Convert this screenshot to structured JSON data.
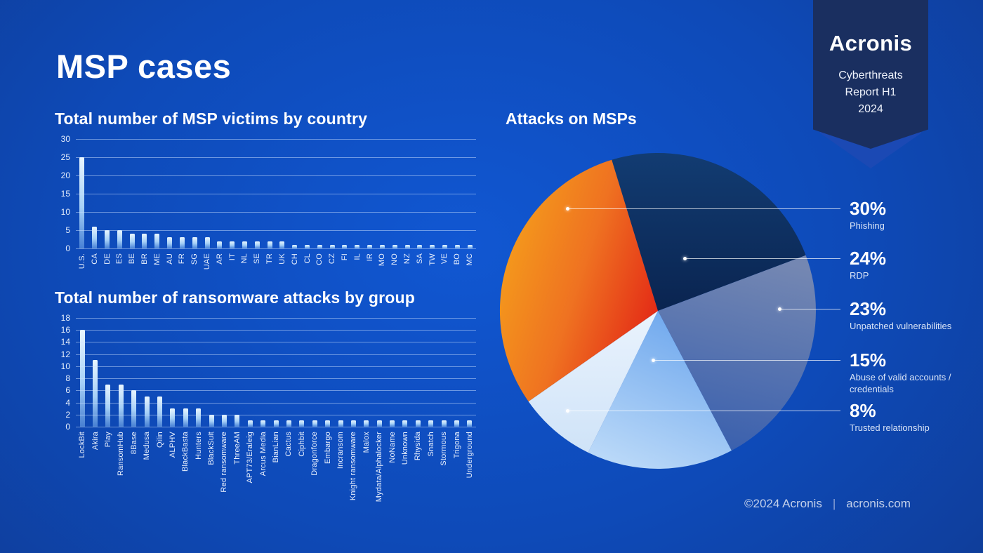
{
  "page": {
    "title": "MSP cases"
  },
  "ribbon": {
    "brand": "Acronis",
    "subtitle_lines": [
      "Cyberthreats",
      "Report H1",
      "2024"
    ]
  },
  "footer": {
    "copyright": "©2024 Acronis",
    "separator": "|",
    "site": "acronis.com"
  },
  "colors": {
    "bar_top": "#e9f6ff",
    "bar_mid": "#a6d0f7",
    "bar_bottom": "rgba(140,195,248,0.45)",
    "gridline": "rgba(205,225,255,0.5)"
  },
  "chart_data": [
    {
      "type": "bar",
      "title": "Total number of MSP victims by country",
      "categories": [
        "U.S.",
        "CA",
        "DE",
        "ES",
        "BE",
        "BR",
        "ME",
        "AU",
        "FR",
        "SG",
        "UAE",
        "AR",
        "IT",
        "NL",
        "SE",
        "TR",
        "UK",
        "CH",
        "CL",
        "CO",
        "CZ",
        "FI",
        "IL",
        "IR",
        "MO",
        "NO",
        "NZ",
        "SA",
        "TW",
        "VE",
        "BO",
        "MC"
      ],
      "values": [
        25,
        6,
        5,
        5,
        4,
        4,
        4,
        3,
        3,
        3,
        3,
        2,
        2,
        2,
        2,
        2,
        2,
        1,
        1,
        1,
        1,
        1,
        1,
        1,
        1,
        1,
        1,
        1,
        1,
        1,
        1,
        1
      ],
      "xlabel": "",
      "ylabel": "",
      "ylim": [
        0,
        30
      ],
      "yticks": [
        0,
        5,
        10,
        15,
        20,
        25,
        30
      ],
      "grid": true,
      "legend": "none"
    },
    {
      "type": "bar",
      "title": "Total number of ransomware attacks by group",
      "categories": [
        "LockBit",
        "Akira",
        "Play",
        "RansomHub",
        "8Base",
        "Medusa",
        "Qilin",
        "ALPHV",
        "BlackBasta",
        "Hunters",
        "BlackSuit",
        "Red ransomware",
        "ThreeAM",
        "APT73/Eraleig",
        "Arcus Media",
        "BianLian",
        "Cactus",
        "Ciphbit",
        "Dragonforce",
        "Embargo",
        "Incransom",
        "Knight ransomware",
        "Malox",
        "Mydata/Alphalocker",
        "NoName",
        "Unknown",
        "Rhysida",
        "Snatch",
        "Stormous",
        "Trigona",
        "Underground"
      ],
      "values": [
        16,
        11,
        7,
        7,
        6,
        5,
        5,
        3,
        3,
        3,
        2,
        2,
        2,
        1,
        1,
        1,
        1,
        1,
        1,
        1,
        1,
        1,
        1,
        1,
        1,
        1,
        1,
        1,
        1,
        1,
        1
      ],
      "xlabel": "",
      "ylabel": "",
      "ylim": [
        0,
        18
      ],
      "yticks": [
        0,
        2,
        4,
        6,
        8,
        10,
        12,
        14,
        16,
        18
      ],
      "grid": true,
      "legend": "none"
    },
    {
      "type": "pie",
      "title": "Attacks on MSPs",
      "legend_position": "right",
      "slices": [
        {
          "label": "Phishing",
          "pct": 30,
          "colors": [
            "#f5a01b",
            "#ef7221",
            "#e22315"
          ]
        },
        {
          "label": "RDP",
          "pct": 24,
          "colors": [
            "#123c72",
            "#0a2450"
          ]
        },
        {
          "label": "Unpatched vulnerabilities",
          "pct": 23,
          "colors": [
            "#7487b2",
            "#3a60ae"
          ]
        },
        {
          "label": "Abuse of valid accounts / credentials",
          "pct": 15,
          "colors": [
            "#6ca6ed",
            "#b9d8f8"
          ]
        },
        {
          "label": "Trusted relationship",
          "pct": 8,
          "colors": [
            "#eaf3fd",
            "#cfe3f8"
          ]
        }
      ]
    }
  ]
}
